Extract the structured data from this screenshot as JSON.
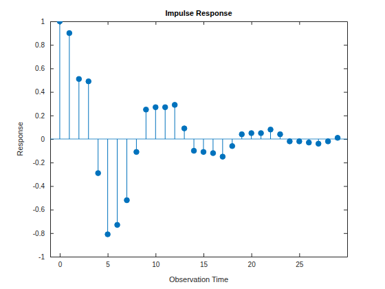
{
  "chart_data": {
    "type": "stem",
    "title": "Impulse Response",
    "x_label": "Observation Time",
    "y_label": "Response",
    "x": [
      0,
      1,
      2,
      3,
      4,
      5,
      6,
      7,
      8,
      9,
      10,
      11,
      12,
      13,
      14,
      15,
      16,
      17,
      18,
      19,
      20,
      21,
      22,
      23,
      24,
      25,
      26,
      27,
      28,
      29
    ],
    "values": [
      1.0,
      0.9,
      0.51,
      0.49,
      -0.29,
      -0.81,
      -0.73,
      -0.52,
      -0.11,
      0.25,
      0.27,
      0.27,
      0.29,
      0.09,
      -0.1,
      -0.11,
      -0.12,
      -0.15,
      -0.06,
      0.04,
      0.05,
      0.05,
      0.08,
      0.04,
      -0.02,
      -0.02,
      -0.03,
      -0.04,
      -0.02,
      0.01
    ],
    "color": "#0072bd",
    "marker": "circle",
    "xlim": [
      -1,
      30
    ],
    "xticks": [
      0,
      5,
      10,
      15,
      20,
      25
    ],
    "ylim": [
      -1,
      1
    ],
    "yticks": [
      -1,
      -0.8,
      -0.6,
      -0.4,
      -0.2,
      0,
      0.2,
      0.4,
      0.6,
      0.8,
      1
    ],
    "grid": false
  }
}
